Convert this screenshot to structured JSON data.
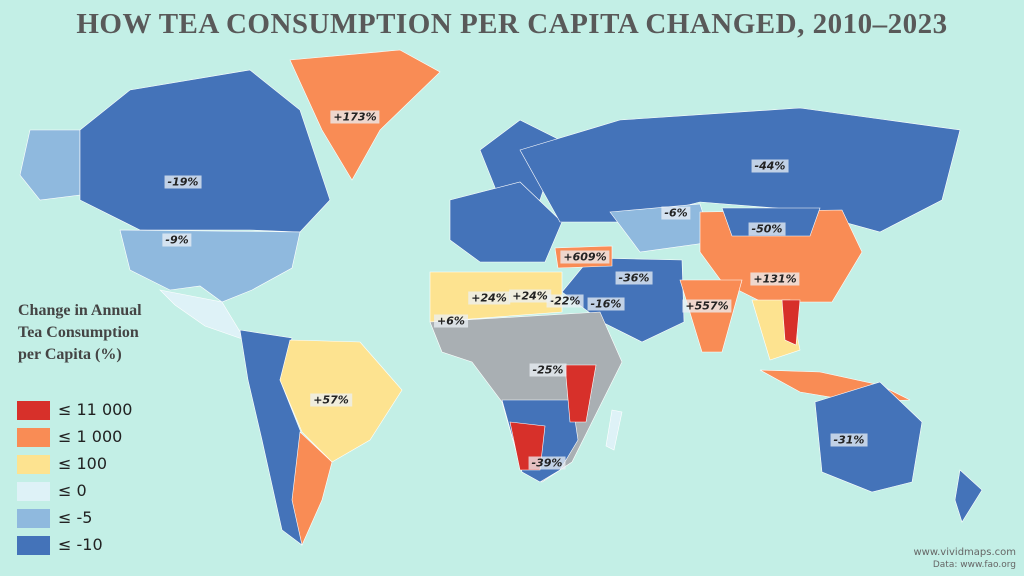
{
  "header": {
    "title": "HOW TEA CONSUMPTION PER CAPITA CHANGED, 2010–2023"
  },
  "map": {
    "labels": [
      "+173%",
      "-19%",
      "-9%",
      "-44%",
      "-6%",
      "-50%",
      "+609%",
      "+131%",
      "-36%",
      "+557%",
      "-16%",
      "-22%",
      "+24%",
      "+24%",
      "+6%",
      "-25%",
      "+57%",
      "-31%",
      "-39%"
    ]
  },
  "legend": {
    "title": "Change in Annual Tea Consumption per Capita (%)",
    "items": [
      {
        "label": "≤ 11 000",
        "color": "#d7302a"
      },
      {
        "label": "≤ 1 000",
        "color": "#f98c55"
      },
      {
        "label": "≤ 100",
        "color": "#fde390"
      },
      {
        "label": "≤ 0",
        "color": "#def2f7"
      },
      {
        "label": "≤ -5",
        "color": "#8fb9de"
      },
      {
        "label": "≤ -10",
        "color": "#4473b9"
      }
    ]
  },
  "credits": {
    "site": "www.vividmaps.com",
    "source": "Data: www.fao.org"
  }
}
